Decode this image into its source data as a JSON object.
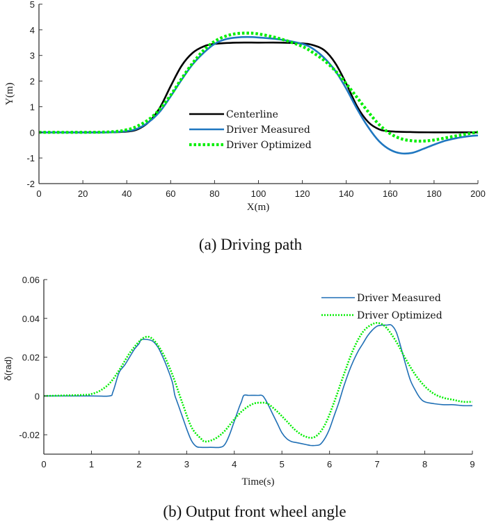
{
  "chart_data": [
    {
      "type": "line",
      "title": "",
      "caption": "(a) Driving path",
      "xlabel": "X(m)",
      "ylabel": "Y(m)",
      "xlim": [
        0,
        200
      ],
      "ylim": [
        -2,
        5
      ],
      "xticks": [
        0,
        20,
        40,
        60,
        80,
        100,
        120,
        140,
        160,
        180,
        200
      ],
      "yticks": [
        -2,
        -1,
        0,
        1,
        2,
        3,
        4,
        5
      ],
      "grid": false,
      "legend_position": "center",
      "series": [
        {
          "name": "Centerline",
          "color": "#000000",
          "style": "solid",
          "x": [
            0,
            30,
            40,
            45,
            50,
            55,
            60,
            65,
            70,
            75,
            80,
            90,
            100,
            110,
            120,
            125,
            130,
            135,
            140,
            145,
            150,
            155,
            160,
            170,
            180,
            190,
            200
          ],
          "y": [
            0,
            0,
            0.03,
            0.12,
            0.4,
            0.95,
            1.8,
            2.6,
            3.1,
            3.35,
            3.45,
            3.5,
            3.5,
            3.5,
            3.47,
            3.4,
            3.2,
            2.7,
            1.9,
            1.0,
            0.4,
            0.12,
            0.04,
            0.01,
            0,
            0,
            0
          ]
        },
        {
          "name": "Driver Measured",
          "color": "#1f77c0",
          "style": "solid",
          "x": [
            0,
            30,
            40,
            45,
            50,
            55,
            60,
            65,
            70,
            75,
            80,
            85,
            90,
            95,
            100,
            110,
            120,
            125,
            130,
            135,
            140,
            145,
            150,
            155,
            160,
            165,
            170,
            175,
            180,
            185,
            190,
            195,
            200
          ],
          "y": [
            0,
            0,
            0.05,
            0.15,
            0.4,
            0.8,
            1.4,
            2.05,
            2.65,
            3.1,
            3.45,
            3.63,
            3.7,
            3.72,
            3.7,
            3.62,
            3.45,
            3.25,
            2.9,
            2.4,
            1.7,
            0.9,
            0.2,
            -0.35,
            -0.68,
            -0.82,
            -0.8,
            -0.65,
            -0.48,
            -0.33,
            -0.23,
            -0.16,
            -0.12
          ]
        },
        {
          "name": "Driver Optimized",
          "color": "#00ee00",
          "style": "dotted",
          "x": [
            0,
            30,
            40,
            45,
            50,
            55,
            60,
            65,
            70,
            75,
            80,
            85,
            90,
            95,
            100,
            110,
            120,
            125,
            130,
            135,
            140,
            145,
            150,
            155,
            160,
            165,
            170,
            175,
            180,
            185,
            190,
            195,
            200
          ],
          "y": [
            0,
            0.01,
            0.1,
            0.25,
            0.5,
            0.9,
            1.45,
            2.1,
            2.7,
            3.2,
            3.55,
            3.75,
            3.85,
            3.87,
            3.84,
            3.65,
            3.35,
            3.1,
            2.8,
            2.4,
            1.9,
            1.35,
            0.8,
            0.3,
            -0.05,
            -0.25,
            -0.33,
            -0.34,
            -0.3,
            -0.22,
            -0.14,
            -0.06,
            0.01
          ]
        }
      ]
    },
    {
      "type": "line",
      "title": "",
      "caption": "(b) Output front wheel angle",
      "xlabel": "Time(s)",
      "ylabel": "δ(rad)",
      "xlim": [
        0,
        9
      ],
      "ylim": [
        -0.03,
        0.06
      ],
      "xticks": [
        0,
        1,
        2,
        3,
        4,
        5,
        6,
        7,
        8,
        9
      ],
      "yticks": [
        -0.02,
        0,
        0.02,
        0.04,
        0.06
      ],
      "ytick_labels": [
        "-0.02",
        "0",
        "0.02",
        "0.04",
        "0.06"
      ],
      "grid": false,
      "legend_position": "top-right",
      "series": [
        {
          "name": "Driver Measured",
          "color": "#1f6fb5",
          "style": "solid",
          "x": [
            0,
            1.0,
            1.38,
            1.45,
            1.55,
            1.6,
            1.7,
            1.8,
            1.9,
            2.0,
            2.05,
            2.2,
            2.3,
            2.4,
            2.5,
            2.6,
            2.7,
            2.75,
            2.8,
            2.9,
            3.0,
            3.1,
            3.2,
            3.3,
            3.5,
            3.7,
            3.8,
            3.9,
            4.0,
            4.1,
            4.15,
            4.2,
            4.3,
            4.5,
            4.6,
            4.7,
            4.8,
            4.9,
            5.0,
            5.1,
            5.2,
            5.3,
            5.5,
            5.6,
            5.7,
            5.8,
            5.9,
            6.0,
            6.1,
            6.2,
            6.3,
            6.4,
            6.5,
            6.6,
            6.7,
            6.8,
            6.9,
            7.0,
            7.1,
            7.2,
            7.3,
            7.4,
            7.5,
            7.6,
            7.7,
            7.8,
            7.9,
            8.0,
            8.2,
            8.4,
            8.6,
            8.8,
            9.0
          ],
          "y": [
            0,
            0,
            0,
            0.002,
            0.01,
            0.013,
            0.016,
            0.02,
            0.024,
            0.027,
            0.029,
            0.029,
            0.028,
            0.025,
            0.02,
            0.014,
            0.007,
            0.0005,
            -0.003,
            -0.01,
            -0.017,
            -0.023,
            -0.026,
            -0.0265,
            -0.0265,
            -0.0265,
            -0.025,
            -0.02,
            -0.013,
            -0.006,
            -0.003,
            0.0003,
            0.0003,
            0.0003,
            0.0,
            -0.004,
            -0.009,
            -0.014,
            -0.019,
            -0.022,
            -0.0235,
            -0.024,
            -0.025,
            -0.0255,
            -0.0255,
            -0.025,
            -0.022,
            -0.017,
            -0.01,
            -0.003,
            0.005,
            0.012,
            0.018,
            0.023,
            0.027,
            0.031,
            0.034,
            0.036,
            0.0365,
            0.0365,
            0.0365,
            0.033,
            0.025,
            0.016,
            0.008,
            0.003,
            -0.001,
            -0.003,
            -0.004,
            -0.0045,
            -0.0045,
            -0.005,
            -0.005
          ]
        },
        {
          "name": "Driver Optimized",
          "color": "#00ee00",
          "style": "dotted",
          "x": [
            0,
            0.8,
            1.0,
            1.2,
            1.4,
            1.6,
            1.8,
            2.0,
            2.15,
            2.3,
            2.5,
            2.7,
            2.9,
            3.1,
            3.3,
            3.4,
            3.6,
            3.8,
            4.0,
            4.2,
            4.4,
            4.55,
            4.7,
            4.9,
            5.1,
            5.3,
            5.5,
            5.7,
            5.9,
            6.1,
            6.3,
            6.5,
            6.7,
            6.9,
            7.05,
            7.2,
            7.4,
            7.6,
            7.8,
            8.0,
            8.2,
            8.4,
            8.6,
            8.8,
            9.0
          ],
          "y": [
            0,
            0.0005,
            0.001,
            0.003,
            0.007,
            0.014,
            0.022,
            0.028,
            0.0305,
            0.029,
            0.022,
            0.011,
            -0.003,
            -0.016,
            -0.022,
            -0.0235,
            -0.022,
            -0.018,
            -0.012,
            -0.007,
            -0.004,
            -0.0035,
            -0.004,
            -0.008,
            -0.013,
            -0.018,
            -0.021,
            -0.021,
            -0.015,
            -0.003,
            0.011,
            0.024,
            0.033,
            0.037,
            0.0375,
            0.035,
            0.028,
            0.019,
            0.011,
            0.005,
            0.001,
            -0.001,
            -0.002,
            -0.003,
            -0.003
          ]
        }
      ]
    }
  ]
}
